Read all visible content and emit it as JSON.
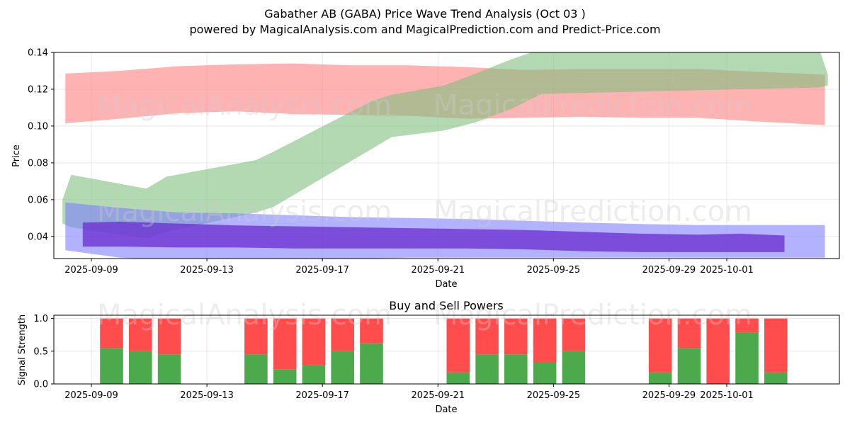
{
  "chart_data": [
    {
      "type": "area",
      "title": "Gabather AB (GABA) Price Wave Trend Analysis (Oct 03 )",
      "subtitle": "powered by MagicalAnalysis.com and MagicalPrediction.com and Predict-Price.com",
      "xlabel": "Date",
      "ylabel": "Price",
      "ylim": [
        0.028,
        0.14
      ],
      "xlim_days": [
        -1.3,
        25.9
      ],
      "x_origin_date": "2025-09-09",
      "x_tick_labels": [
        "2025-09-09",
        "2025-09-13",
        "2025-09-17",
        "2025-09-21",
        "2025-09-25",
        "2025-09-29",
        "2025-10-01"
      ],
      "x_tick_days": [
        0,
        4,
        8,
        12,
        16,
        20,
        22
      ],
      "y_tick_labels": [
        "0.04",
        "0.06",
        "0.08",
        "0.10",
        "0.12",
        "0.14"
      ],
      "y_ticks": [
        0.04,
        0.06,
        0.08,
        0.1,
        0.12,
        0.14
      ],
      "grid": true,
      "series": [
        {
          "name": "red band",
          "color": "#ff7f7f",
          "x": [
            -0.9,
            1,
            3,
            5,
            7,
            9,
            11,
            13,
            15,
            17,
            19,
            21,
            23,
            25.4
          ],
          "upper": [
            0.1285,
            0.13,
            0.1325,
            0.1335,
            0.134,
            0.133,
            0.133,
            0.132,
            0.1305,
            0.131,
            0.131,
            0.131,
            0.1295,
            0.128
          ],
          "lower": [
            0.1015,
            0.104,
            0.107,
            0.108,
            0.1065,
            0.106,
            0.1055,
            0.104,
            0.1045,
            0.105,
            0.1045,
            0.1045,
            0.1025,
            0.1005
          ]
        },
        {
          "name": "green band",
          "color": "#7fbf7f",
          "x": [
            -1,
            -0.7,
            1.9,
            2.6,
            5.7,
            6.3,
            9.7,
            10.4,
            12.2,
            13.3,
            14.5,
            15.6,
            25.2,
            25.5
          ],
          "upper": [
            0.06,
            0.0735,
            0.066,
            0.0725,
            0.0815,
            0.086,
            0.1135,
            0.117,
            0.122,
            0.1285,
            0.136,
            0.142,
            0.142,
            0.128
          ],
          "lower": [
            0.047,
            0.045,
            0.039,
            0.0425,
            0.053,
            0.056,
            0.0875,
            0.094,
            0.0975,
            0.102,
            0.109,
            0.1175,
            0.121,
            0.122
          ]
        },
        {
          "name": "blue band",
          "color": "#7f7fff",
          "x": [
            -0.9,
            1,
            3,
            5,
            7,
            9,
            11,
            13,
            15,
            17,
            19,
            21,
            23,
            25.4
          ],
          "upper": [
            0.0585,
            0.0555,
            0.053,
            0.0525,
            0.0515,
            0.0505,
            0.05,
            0.0495,
            0.0485,
            0.0475,
            0.0468,
            0.0462,
            0.0462,
            0.0462
          ],
          "lower": [
            0.0325,
            0.0285,
            0.0275,
            0.0275,
            0.028,
            0.028,
            0.0285,
            0.0285,
            0.0285,
            0.0285,
            0.0285,
            0.0285,
            0.0285,
            0.0285
          ]
        },
        {
          "name": "purple band",
          "color": "#6a2bcf",
          "x": [
            -0.3,
            1,
            3,
            5,
            7,
            9,
            11,
            13,
            15,
            17,
            19,
            21,
            22.5,
            24
          ],
          "upper": [
            0.0475,
            0.048,
            0.047,
            0.046,
            0.0455,
            0.045,
            0.0445,
            0.044,
            0.0435,
            0.0425,
            0.0415,
            0.041,
            0.0415,
            0.0405
          ],
          "lower": [
            0.0345,
            0.0345,
            0.034,
            0.034,
            0.0335,
            0.0335,
            0.0335,
            0.0335,
            0.033,
            0.032,
            0.0315,
            0.0315,
            0.0315,
            0.0315
          ]
        }
      ]
    },
    {
      "type": "bar",
      "title": "Buy and Sell Powers",
      "xlabel": "Date",
      "ylabel": "Signal Strength",
      "ylim": [
        0,
        1.05
      ],
      "xlim_days": [
        -1.3,
        25.9
      ],
      "x_tick_labels": [
        "2025-09-09",
        "2025-09-13",
        "2025-09-17",
        "2025-09-21",
        "2025-09-25",
        "2025-09-29",
        "2025-10-01"
      ],
      "x_tick_days": [
        0,
        4,
        8,
        12,
        16,
        20,
        22
      ],
      "y_tick_labels": [
        "0.0",
        "0.5",
        "1.0"
      ],
      "y_ticks": [
        0,
        0.5,
        1.0
      ],
      "grid": true,
      "series": [
        {
          "name": "Buy",
          "color": "#4caa4c"
        },
        {
          "name": "Sell",
          "color": "#ff4c4c"
        }
      ],
      "days": [
        0.7,
        1.7,
        2.7,
        5.7,
        6.7,
        7.7,
        8.7,
        9.7,
        12.7,
        13.7,
        14.7,
        15.7,
        16.7,
        19.7,
        20.7,
        21.7,
        22.7,
        23.7
      ],
      "buy": [
        0.55,
        0.5,
        0.45,
        0.45,
        0.22,
        0.28,
        0.5,
        0.62,
        0.17,
        0.45,
        0.45,
        0.33,
        0.5,
        0.17,
        0.55,
        0.0,
        0.78,
        0.17
      ]
    }
  ],
  "watermarks": [
    "MagicalAnalysis.com",
    "MagicalPrediction.com"
  ]
}
